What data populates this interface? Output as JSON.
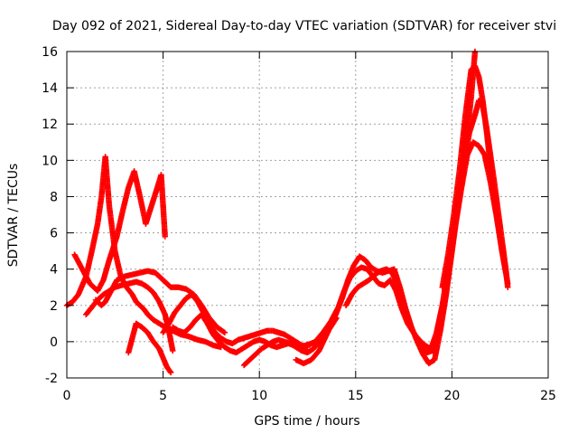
{
  "chart_data": {
    "type": "scatter",
    "title": "Day 092 of 2021, Sidereal Day-to-day VTEC variation (SDTVAR) for receiver stvi",
    "xlabel": "GPS time / hours",
    "ylabel": "SDTVAR / TECUs",
    "xlim": [
      0,
      25
    ],
    "ylim": [
      -2,
      16
    ],
    "xticks": [
      "0",
      "5",
      "10",
      "15",
      "20",
      "25"
    ],
    "yticks": [
      "-2",
      "0",
      "2",
      "4",
      "6",
      "8",
      "10",
      "12",
      "14",
      "16"
    ],
    "grid": true,
    "marker": "plus",
    "color": "#ff0000",
    "series": [
      {
        "x": [
          0.0,
          0.3,
          0.6,
          1.0,
          1.3,
          1.6,
          1.8,
          2.0,
          2.2,
          2.5,
          2.8,
          3.1,
          3.4,
          3.6,
          3.8,
          4.0,
          4.2,
          4.5,
          4.8,
          5.1,
          5.5,
          5.9,
          6.3,
          6.8,
          7.2,
          7.6,
          8.0
        ],
        "y": [
          2.0,
          2.2,
          2.6,
          3.6,
          5.0,
          6.5,
          8.0,
          10.2,
          7.5,
          5.0,
          3.6,
          3.0,
          2.6,
          2.2,
          2.0,
          1.8,
          1.5,
          1.2,
          1.0,
          0.8,
          0.6,
          0.4,
          0.3,
          0.1,
          0.0,
          -0.2,
          -0.3
        ]
      },
      {
        "x": [
          0.4,
          0.8,
          1.2,
          1.6,
          1.9,
          2.2,
          2.6,
          2.9,
          3.2,
          3.5,
          3.8,
          4.1,
          4.4,
          4.7,
          4.9,
          5.1
        ],
        "y": [
          4.8,
          4.0,
          3.2,
          2.8,
          3.4,
          4.5,
          5.8,
          7.2,
          8.5,
          9.4,
          8.0,
          6.5,
          7.5,
          8.5,
          9.2,
          5.8
        ]
      },
      {
        "x": [
          1.0,
          1.3,
          1.6,
          1.9,
          2.2,
          2.5,
          2.8,
          3.2,
          3.6,
          3.9,
          4.2,
          4.5,
          4.8,
          5.1,
          5.3,
          5.5
        ],
        "y": [
          1.5,
          1.9,
          2.3,
          2.6,
          2.8,
          3.0,
          3.1,
          3.2,
          3.3,
          3.2,
          3.0,
          2.7,
          2.2,
          1.5,
          0.6,
          -0.5
        ]
      },
      {
        "x": [
          1.5,
          1.8,
          2.0,
          2.3,
          2.6,
          3.0,
          3.4,
          3.8,
          4.2,
          4.6,
          5.0,
          5.4,
          5.8,
          6.2,
          6.6,
          7.0,
          7.4,
          7.8,
          8.2
        ],
        "y": [
          2.3,
          2.0,
          2.2,
          2.8,
          3.4,
          3.6,
          3.7,
          3.8,
          3.9,
          3.8,
          3.4,
          3.0,
          3.0,
          2.9,
          2.6,
          2.0,
          1.3,
          0.8,
          0.5
        ]
      },
      {
        "x": [
          3.2,
          3.4,
          3.6,
          3.9,
          4.2,
          4.5,
          4.8,
          5.0,
          5.2,
          5.4
        ],
        "y": [
          -0.6,
          0.2,
          1.0,
          0.8,
          0.5,
          0.0,
          -0.4,
          -0.9,
          -1.4,
          -1.7
        ]
      },
      {
        "x": [
          5.0,
          5.3,
          5.6,
          5.9,
          6.2,
          6.5,
          6.8,
          7.1,
          7.4,
          7.7,
          8.0,
          8.3,
          8.6,
          8.9,
          9.2,
          9.5,
          9.8,
          10.1,
          10.4,
          10.7,
          11.0,
          11.3,
          11.6,
          11.9,
          12.2,
          12.5
        ],
        "y": [
          0.5,
          1.0,
          1.6,
          2.0,
          2.4,
          2.6,
          2.2,
          1.6,
          1.0,
          0.5,
          0.2,
          0.0,
          -0.1,
          0.1,
          0.2,
          0.3,
          0.4,
          0.5,
          0.6,
          0.6,
          0.5,
          0.4,
          0.2,
          0.0,
          -0.2,
          -0.3
        ]
      },
      {
        "x": [
          5.5,
          5.8,
          6.1,
          6.4,
          6.7,
          7.0,
          7.3,
          7.6,
          7.9,
          8.2,
          8.5,
          8.8,
          9.1,
          9.4,
          9.7,
          10.0,
          10.3,
          10.6,
          10.9,
          11.2,
          11.5,
          11.8,
          12.1,
          12.4,
          12.7,
          13.0
        ],
        "y": [
          0.8,
          0.6,
          0.5,
          0.8,
          1.2,
          1.5,
          1.0,
          0.4,
          0.0,
          -0.3,
          -0.5,
          -0.6,
          -0.4,
          -0.2,
          0.0,
          0.1,
          0.0,
          -0.2,
          -0.3,
          -0.2,
          -0.1,
          -0.2,
          -0.3,
          -0.2,
          -0.1,
          0.0
        ]
      },
      {
        "x": [
          9.2,
          9.5,
          9.8,
          10.1,
          10.4,
          10.7,
          11.0,
          11.3,
          11.6,
          11.9,
          12.2,
          12.5,
          12.8,
          13.1,
          13.4,
          13.7,
          14.0
        ],
        "y": [
          -1.3,
          -1.0,
          -0.7,
          -0.4,
          -0.2,
          0.0,
          0.1,
          0.0,
          -0.1,
          -0.3,
          -0.5,
          -0.6,
          -0.4,
          0.0,
          0.4,
          0.8,
          1.3
        ]
      },
      {
        "x": [
          11.9,
          12.3,
          12.7,
          13.1,
          13.5,
          13.9,
          14.3,
          14.6,
          14.9,
          15.2,
          15.5,
          15.8,
          16.1,
          16.4,
          16.7,
          17.0
        ],
        "y": [
          -1.0,
          -1.2,
          -1.0,
          -0.5,
          0.4,
          1.3,
          2.4,
          3.4,
          4.2,
          4.7,
          4.5,
          4.1,
          3.9,
          3.8,
          3.9,
          4.0
        ]
      },
      {
        "x": [
          12.5,
          12.9,
          13.3,
          13.7,
          14.1,
          14.4,
          14.7,
          15.0,
          15.3,
          15.6,
          15.9,
          16.2,
          16.5,
          16.8,
          17.1,
          17.4,
          17.7,
          18.0,
          18.3,
          18.6,
          18.9,
          19.2,
          19.5,
          19.8,
          20.1,
          20.4,
          20.7,
          21.0,
          21.2
        ],
        "y": [
          -0.2,
          0.0,
          0.5,
          1.1,
          1.9,
          2.8,
          3.5,
          3.9,
          4.1,
          4.0,
          3.6,
          3.2,
          3.1,
          3.4,
          2.8,
          1.8,
          1.0,
          0.5,
          0.1,
          -0.2,
          -0.4,
          0.5,
          2.0,
          4.0,
          6.0,
          8.0,
          10.5,
          13.5,
          16.0
        ]
      },
      {
        "x": [
          14.5,
          14.8,
          15.1,
          15.4,
          15.7,
          16.0,
          16.3,
          16.6,
          16.9,
          17.2,
          17.5,
          17.8,
          18.1,
          18.4,
          18.7,
          19.0,
          19.3,
          19.6,
          19.9,
          20.2,
          20.5,
          20.8,
          21.1,
          21.4,
          21.7,
          22.0,
          22.3,
          22.6,
          22.9
        ],
        "y": [
          2.0,
          2.6,
          3.0,
          3.2,
          3.4,
          3.7,
          3.9,
          4.0,
          3.8,
          3.0,
          2.0,
          1.0,
          0.3,
          -0.3,
          -0.6,
          -0.5,
          0.5,
          2.0,
          4.2,
          6.5,
          8.5,
          10.3,
          11.0,
          10.8,
          10.3,
          8.8,
          7.0,
          5.0,
          3.2
        ]
      },
      {
        "x": [
          17.0,
          17.3,
          17.6,
          17.9,
          18.2,
          18.5,
          18.8,
          19.1,
          19.4,
          19.7,
          20.0,
          20.3,
          20.6,
          20.9,
          21.2,
          21.4,
          21.6,
          21.8,
          22.0,
          22.2,
          22.4,
          22.6,
          22.8,
          22.9
        ],
        "y": [
          4.0,
          3.0,
          1.8,
          0.8,
          0.0,
          -0.7,
          -1.2,
          -1.0,
          0.6,
          2.6,
          5.0,
          7.5,
          9.5,
          11.5,
          12.5,
          13.3,
          13.0,
          11.8,
          10.3,
          8.8,
          7.2,
          5.6,
          4.0,
          3.0
        ]
      },
      {
        "x": [
          19.5,
          19.8,
          20.1,
          20.4,
          20.7,
          21.0,
          21.2,
          21.4,
          21.6,
          21.8,
          22.0,
          22.2,
          22.4,
          22.6,
          22.8
        ],
        "y": [
          3.0,
          4.8,
          7.0,
          9.5,
          12.5,
          15.0,
          15.2,
          14.6,
          13.3,
          11.6,
          9.7,
          8.0,
          6.5,
          5.0,
          3.8
        ]
      }
    ]
  }
}
